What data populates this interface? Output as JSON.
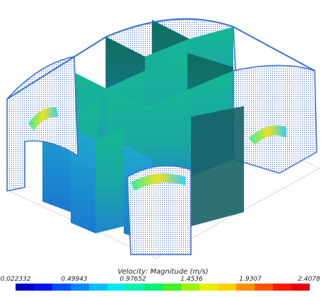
{
  "legend": {
    "title": "Velocity: Magnitude (m/s)",
    "ticks": [
      "0.022332",
      "0.49943",
      "0.97652",
      "1.4536",
      "1.9307",
      "2.4078"
    ],
    "colors": [
      "#0000c8",
      "#0014f0",
      "#0050ff",
      "#0088ff",
      "#00c0ff",
      "#00e8f0",
      "#00f0b0",
      "#00f070",
      "#40f020",
      "#a0f000",
      "#e8f000",
      "#ffd000",
      "#ff9000",
      "#ff5000",
      "#ff1800",
      "#e80000"
    ]
  },
  "palette": {
    "plane_teal": "#1aa890",
    "plane_dark": "#0f6e64",
    "plane_blue": "#2080c8",
    "vector_blue": "#2a5fd0",
    "wire": "#cfcfcf"
  }
}
